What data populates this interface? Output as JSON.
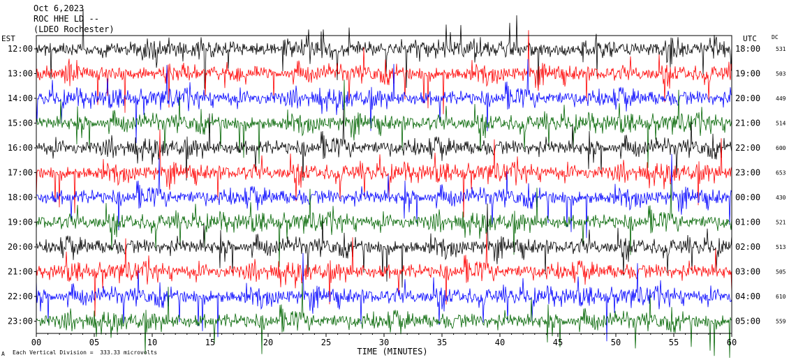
{
  "header": {
    "date": "Oct 6,2023",
    "station": "ROC HHE LD --",
    "location": "(LDEO Rochester)"
  },
  "chart_data": {
    "type": "line",
    "title": "",
    "xlabel": "TIME (MINUTES)",
    "ylabel": "",
    "left_timezone": "EST",
    "right_timezone": "UTC",
    "dc_header": "DC",
    "xlim": [
      0,
      60
    ],
    "x_ticks": [
      "00",
      "05",
      "10",
      "15",
      "20",
      "25",
      "30",
      "35",
      "40",
      "45",
      "50",
      "55",
      "60"
    ],
    "x_tick_values": [
      0,
      5,
      10,
      15,
      20,
      25,
      30,
      35,
      40,
      45,
      50,
      55,
      60
    ],
    "rows": [
      {
        "est": "12:00",
        "utc": "18:00",
        "dc": "531",
        "color": "#000000"
      },
      {
        "est": "13:00",
        "utc": "19:00",
        "dc": "503",
        "color": "#ff0000"
      },
      {
        "est": "14:00",
        "utc": "20:00",
        "dc": "449",
        "color": "#0000ff"
      },
      {
        "est": "15:00",
        "utc": "21:00",
        "dc": "514",
        "color": "#006400"
      },
      {
        "est": "16:00",
        "utc": "22:00",
        "dc": "600",
        "color": "#000000"
      },
      {
        "est": "17:00",
        "utc": "23:00",
        "dc": "653",
        "color": "#ff0000"
      },
      {
        "est": "18:00",
        "utc": "00:00",
        "dc": "430",
        "color": "#0000ff"
      },
      {
        "est": "19:00",
        "utc": "01:00",
        "dc": "521",
        "color": "#006400"
      },
      {
        "est": "20:00",
        "utc": "02:00",
        "dc": "513",
        "color": "#000000"
      },
      {
        "est": "21:00",
        "utc": "03:00",
        "dc": "505",
        "color": "#ff0000"
      },
      {
        "est": "22:00",
        "utc": "04:00",
        "dc": "610",
        "color": "#0000ff"
      },
      {
        "est": "23:00",
        "utc": "05:00",
        "dc": "559",
        "color": "#006400"
      }
    ],
    "scale_note": "Each Vertical Division =  333.33 microvolts",
    "scale_marker": "A",
    "grid": false
  }
}
